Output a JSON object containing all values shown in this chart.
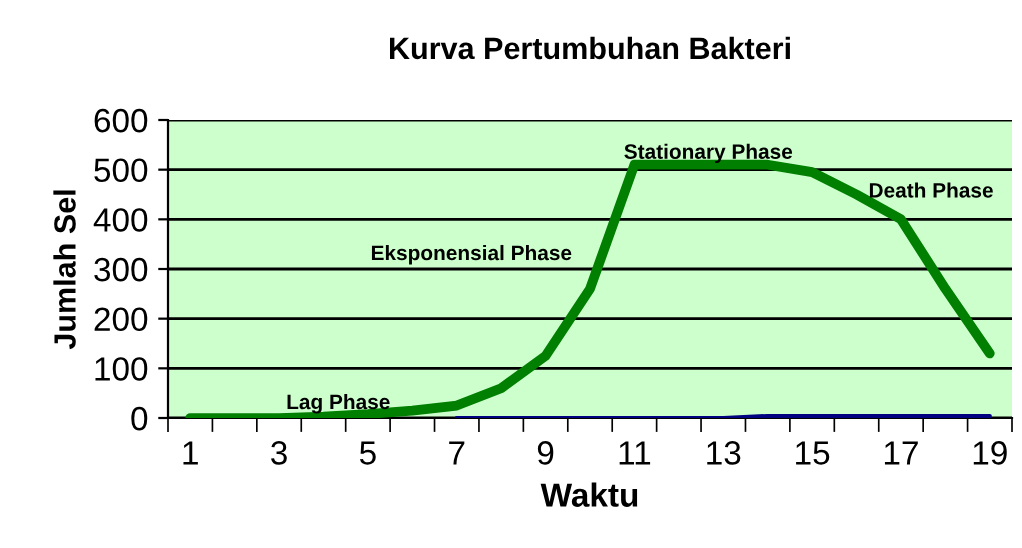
{
  "chart_data": {
    "type": "line",
    "title": "Kurva Pertumbuhan Bakteri",
    "xlabel": "Waktu",
    "ylabel": "Jumlah Sel",
    "categories": [
      "1",
      null,
      "3",
      null,
      "5",
      null,
      "7",
      null,
      "9",
      null,
      "11",
      null,
      "13",
      null,
      "15",
      null,
      "17",
      null,
      "19"
    ],
    "series": [
      {
        "color": "#000080",
        "values": [
          null,
          null,
          null,
          null,
          null,
          null,
          0,
          0,
          0,
          0,
          0,
          0,
          0,
          4,
          4,
          4,
          4,
          4,
          4
        ]
      },
      {
        "color": "#007f00",
        "values": [
          0,
          0,
          0,
          3,
          8,
          15,
          25,
          60,
          125,
          260,
          510,
          510,
          510,
          510,
          495,
          450,
          400,
          260,
          130
        ]
      }
    ],
    "ylim": [
      0,
      600
    ],
    "yticks": [
      0,
      100,
      200,
      300,
      400,
      500,
      600
    ],
    "grid": "y",
    "legend": false,
    "annotations": [
      "Lag Phase",
      "Eksponensial Phase",
      "Stationary Phase",
      "Death Phase"
    ]
  }
}
